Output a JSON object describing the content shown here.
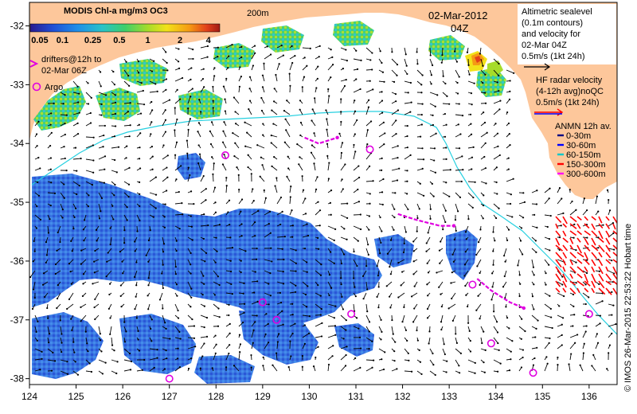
{
  "title_block": {
    "product": "MODIS Chl-a mg/m3 OC3",
    "date": "02-Mar-2012",
    "time": "04Z",
    "contour_label": "200m"
  },
  "colorbar": {
    "tick_labels": [
      "0.05",
      "0.1",
      "0.25",
      "0.5",
      "1",
      "2",
      "4"
    ],
    "colors": [
      "#2a1a8f",
      "#1f4fd6",
      "#1f8fe8",
      "#29c3c8",
      "#3fcf6a",
      "#a6dc2a",
      "#f2e21a",
      "#f59a14",
      "#e2401a",
      "#a01a14"
    ]
  },
  "legends": {
    "drifters": [
      "drifters@12h to",
      "02-Mar 06Z"
    ],
    "argo": "Argo",
    "altimetry": [
      "Altimetric sealevel",
      "(0.1m contours)",
      "and velocity for",
      "02-Mar 04Z",
      "0.5m/s (1kt 24h)"
    ],
    "hf_radar": [
      "HF radar velocity",
      "(4-12h avg)noQC",
      "0.5m/s (1kt 24h)"
    ],
    "anmn_title": "ANMN 12h av.",
    "anmn_items": [
      {
        "label": "0-30m",
        "color": "#000080"
      },
      {
        "label": "30-60m",
        "color": "#0000ff"
      },
      {
        "label": "60-150m",
        "color": "#00c8c8"
      },
      {
        "label": "150-300m",
        "color": "#ff0000"
      },
      {
        "label": "300-600m",
        "color": "#ff00ff"
      }
    ]
  },
  "axes": {
    "x_ticks": [
      "124",
      "125",
      "126",
      "127",
      "128",
      "129",
      "130",
      "131",
      "132",
      "133",
      "134",
      "135",
      "136"
    ],
    "y_ticks": [
      "-32",
      "-33",
      "-34",
      "-35",
      "-36",
      "-37",
      "-38"
    ]
  },
  "credit": "© IMOS 26-Mar-2015 22:53:22 Hobart time",
  "colors": {
    "land": "#fdc79b",
    "drifter": "#e000e0",
    "argo": "#e000e0",
    "hf": "#ff0000",
    "contour200": "#26d0e0"
  },
  "map_extent": {
    "lon": [
      124,
      136.6
    ],
    "lat": [
      -38.1,
      -31.6
    ]
  },
  "argo_floats": [
    {
      "lon": 128.2,
      "lat": -34.2
    },
    {
      "lon": 131.3,
      "lat": -34.1
    },
    {
      "lon": 133.5,
      "lat": -36.4
    },
    {
      "lon": 129.0,
      "lat": -36.7
    },
    {
      "lon": 129.3,
      "lat": -37.0
    },
    {
      "lon": 130.9,
      "lat": -36.9
    },
    {
      "lon": 133.9,
      "lat": -37.4
    },
    {
      "lon": 136.0,
      "lat": -36.9
    },
    {
      "lon": 134.8,
      "lat": -37.9
    },
    {
      "lon": 127.0,
      "lat": -38.0
    }
  ],
  "drifter_tracks": [
    [
      [
        129.9,
        -33.9
      ],
      [
        130.2,
        -34.0
      ],
      [
        130.6,
        -33.9
      ]
    ],
    [
      [
        131.9,
        -35.2
      ],
      [
        132.3,
        -35.3
      ],
      [
        132.8,
        -35.4
      ],
      [
        133.1,
        -35.4
      ]
    ],
    [
      [
        133.6,
        -36.3
      ],
      [
        133.9,
        -36.5
      ],
      [
        134.3,
        -36.7
      ],
      [
        134.6,
        -36.8
      ]
    ]
  ]
}
